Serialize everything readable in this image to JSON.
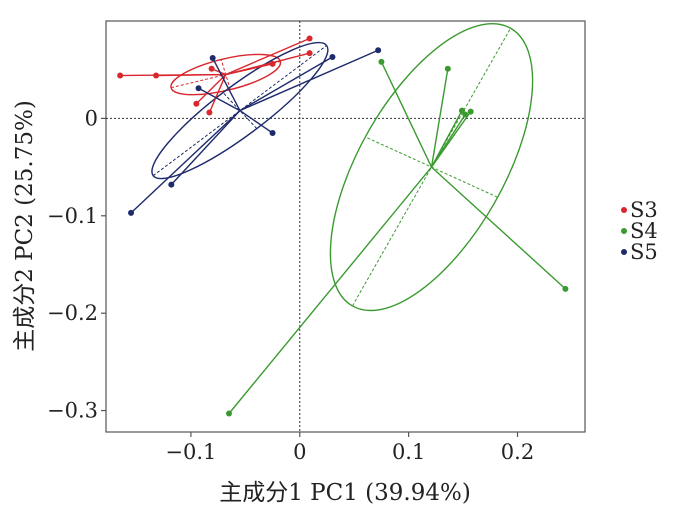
{
  "chart_data": {
    "type": "scatter",
    "title": "",
    "xlabel": "主成分1 PC1 (39.94%)",
    "ylabel": "主成分2 PC2 (25.75%)",
    "xlim": [
      -0.178,
      0.262
    ],
    "ylim": [
      -0.322,
      0.1
    ],
    "x_ticks": [
      -0.1,
      0,
      0.1,
      0.2
    ],
    "x_tick_labels": [
      "−0.1",
      "0",
      "0.1",
      "0.2"
    ],
    "y_ticks": [
      -0.3,
      -0.2,
      -0.1,
      0
    ],
    "y_tick_labels": [
      "−0.3",
      "−0.2",
      "−0.1",
      "0"
    ],
    "reference_lines": {
      "x": 0,
      "y": 0,
      "style": "dotted"
    },
    "grid": false,
    "legend_position": "right",
    "series": [
      {
        "name": "S3",
        "color": "#d9272e",
        "centroid": [
          -0.068,
          0.045
        ],
        "points": [
          [
            -0.165,
            0.044
          ],
          [
            -0.132,
            0.044
          ],
          [
            -0.081,
            0.051
          ],
          [
            -0.095,
            0.015
          ],
          [
            -0.083,
            0.006
          ],
          [
            -0.025,
            0.056
          ],
          [
            0.009,
            0.067
          ],
          [
            0.009,
            0.082
          ]
        ],
        "ellipse": {
          "center": [
            -0.068,
            0.045
          ],
          "semi_major": 0.052,
          "semi_minor": 0.016,
          "angle_deg": 15
        }
      },
      {
        "name": "S4",
        "color": "#3a9a2f",
        "centroid": [
          0.121,
          -0.05
        ],
        "points": [
          [
            0.075,
            0.058
          ],
          [
            0.136,
            0.051
          ],
          [
            0.149,
            0.008
          ],
          [
            0.152,
            0.004
          ],
          [
            0.157,
            0.007
          ],
          [
            0.244,
            -0.175
          ],
          [
            -0.065,
            -0.303
          ]
        ],
        "ellipse": {
          "center": [
            0.121,
            -0.05
          ],
          "semi_major": 0.16,
          "semi_minor": 0.068,
          "angle_deg": 63
        }
      },
      {
        "name": "S5",
        "color": "#1d2a6b",
        "centroid": [
          -0.055,
          0.008
        ],
        "points": [
          [
            -0.155,
            -0.097
          ],
          [
            -0.118,
            -0.068
          ],
          [
            -0.093,
            0.031
          ],
          [
            -0.08,
            0.062
          ],
          [
            -0.025,
            -0.015
          ],
          [
            0.03,
            0.063
          ],
          [
            0.072,
            0.07
          ]
        ],
        "ellipse": {
          "center": [
            -0.055,
            0.008
          ],
          "semi_major": 0.104,
          "semi_minor": 0.024,
          "angle_deg": 40
        }
      }
    ]
  }
}
